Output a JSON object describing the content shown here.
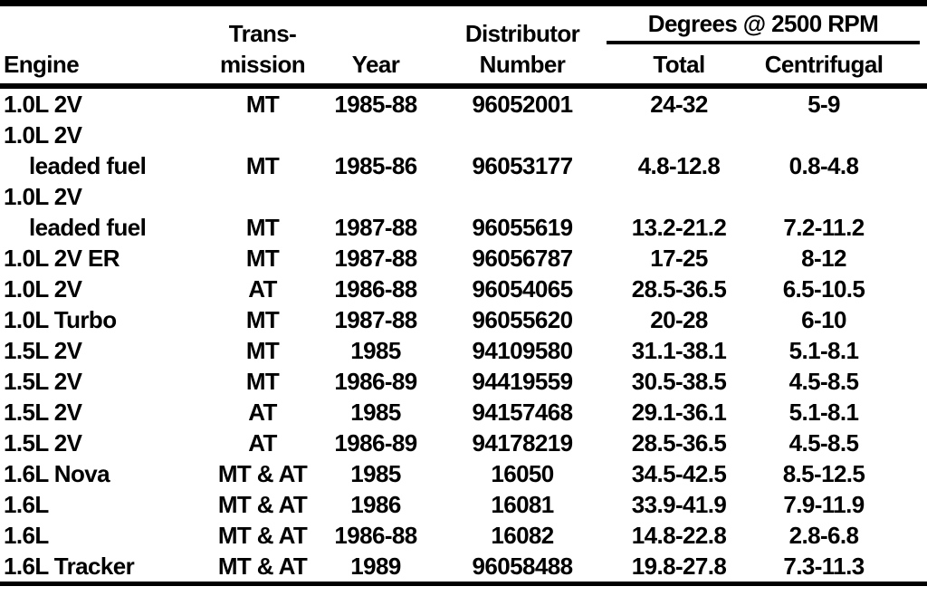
{
  "header": {
    "engine": "Engine",
    "transmission_line1": "Trans-",
    "transmission_line2": "mission",
    "year": "Year",
    "distributor_line1": "Distributor",
    "distributor_line2": "Number",
    "degrees_group": "Degrees @ 2500 RPM",
    "total": "Total",
    "centrifugal": "Centrifugal"
  },
  "rows": [
    {
      "engine": "1.0L 2V",
      "trans": "MT",
      "year": "1985-88",
      "dist": "96052001",
      "total": "24-32",
      "cent": "5-9"
    },
    {
      "engine": "1.0L 2V",
      "engine2": "leaded fuel",
      "trans": "MT",
      "year": "1985-86",
      "dist": "96053177",
      "total": "4.8-12.8",
      "cent": "0.8-4.8"
    },
    {
      "engine": "1.0L 2V",
      "engine2": "leaded fuel",
      "trans": "MT",
      "year": "1987-88",
      "dist": "96055619",
      "total": "13.2-21.2",
      "cent": "7.2-11.2"
    },
    {
      "engine": "1.0L 2V ER",
      "trans": "MT",
      "year": "1987-88",
      "dist": "96056787",
      "total": "17-25",
      "cent": "8-12"
    },
    {
      "engine": "1.0L 2V",
      "trans": "AT",
      "year": "1986-88",
      "dist": "96054065",
      "total": "28.5-36.5",
      "cent": "6.5-10.5"
    },
    {
      "engine": "1.0L Turbo",
      "trans": "MT",
      "year": "1987-88",
      "dist": "96055620",
      "total": "20-28",
      "cent": "6-10"
    },
    {
      "engine": "1.5L 2V",
      "trans": "MT",
      "year": "1985",
      "dist": "94109580",
      "total": "31.1-38.1",
      "cent": "5.1-8.1"
    },
    {
      "engine": "1.5L 2V",
      "trans": "MT",
      "year": "1986-89",
      "dist": "94419559",
      "total": "30.5-38.5",
      "cent": "4.5-8.5"
    },
    {
      "engine": "1.5L 2V",
      "trans": "AT",
      "year": "1985",
      "dist": "94157468",
      "total": "29.1-36.1",
      "cent": "5.1-8.1"
    },
    {
      "engine": "1.5L 2V",
      "trans": "AT",
      "year": "1986-89",
      "dist": "94178219",
      "total": "28.5-36.5",
      "cent": "4.5-8.5"
    },
    {
      "engine": "1.6L Nova",
      "trans": "MT & AT",
      "year": "1985",
      "dist": "16050",
      "total": "34.5-42.5",
      "cent": "8.5-12.5"
    },
    {
      "engine": "1.6L",
      "trans": "MT & AT",
      "year": "1986",
      "dist": "16081",
      "total": "33.9-41.9",
      "cent": "7.9-11.9"
    },
    {
      "engine": "1.6L",
      "trans": "MT & AT",
      "year": "1986-88",
      "dist": "16082",
      "total": "14.8-22.8",
      "cent": "2.8-6.8"
    },
    {
      "engine": "1.6L Tracker",
      "trans": "MT & AT",
      "year": "1989",
      "dist": "96058488",
      "total": "19.8-27.8",
      "cent": "7.3-11.3"
    }
  ]
}
